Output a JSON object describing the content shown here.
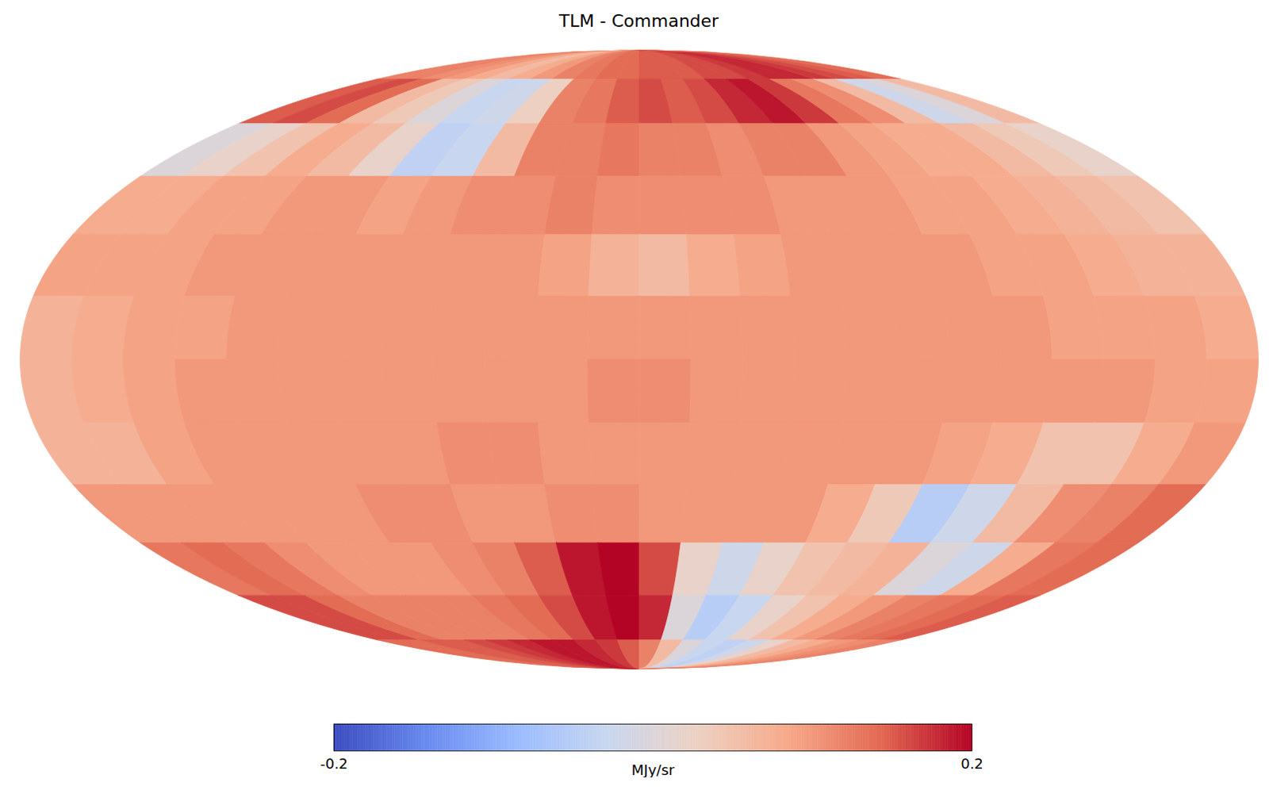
{
  "chart_data": {
    "type": "heatmap",
    "title": "TLM - Commander",
    "x": [
      172.5,
      157.5,
      142.5,
      127.5,
      112.5,
      97.5,
      82.5,
      67.5,
      52.5,
      37.5,
      22.5,
      7.5,
      -7.5,
      -22.5,
      -37.5,
      -52.5,
      -67.5,
      -82.5,
      -97.5,
      -112.5,
      -127.5,
      -142.5,
      -157.5,
      -172.5
    ],
    "y": [
      82.5,
      67.5,
      52.5,
      37.5,
      22.5,
      7.5,
      -7.5,
      -22.5,
      -37.5,
      -52.5,
      -67.5,
      -82.5
    ],
    "xlim": [
      180,
      -180
    ],
    "ylim": [
      90,
      -90
    ],
    "values": [
      [
        0.12,
        0.12,
        0.11,
        0.1,
        0.08,
        0.06,
        0.08,
        0.1,
        0.12,
        0.13,
        0.14,
        0.14,
        0.15,
        0.15,
        0.15,
        0.16,
        0.16,
        0.17,
        0.18,
        0.18,
        0.17,
        0.16,
        0.15,
        0.14
      ],
      [
        0.15,
        0.16,
        0.14,
        0.06,
        0.04,
        0,
        -0.03,
        -0.02,
        0.03,
        0.12,
        0.13,
        0.15,
        0.16,
        0.15,
        0.16,
        0.18,
        0.19,
        0.17,
        0.13,
        0.11,
        0.06,
        -0.02,
        0,
        0.06
      ],
      [
        0,
        0.02,
        0.05,
        0.08,
        0.06,
        0.02,
        -0.04,
        -0.03,
        0.06,
        0.12,
        0.12,
        0.13,
        0.12,
        0.12,
        0.11,
        0.12,
        0.12,
        0.1,
        0.09,
        0.08,
        0.08,
        0.06,
        0.04,
        0.02
      ],
      [
        0.08,
        0.08,
        0.09,
        0.09,
        0.1,
        0.1,
        0.09,
        0.1,
        0.11,
        0.11,
        0.12,
        0.11,
        0.11,
        0.11,
        0.11,
        0.1,
        0.1,
        0.1,
        0.09,
        0.09,
        0.08,
        0.07,
        0.06,
        0.05
      ],
      [
        0.09,
        0.09,
        0.09,
        0.1,
        0.1,
        0.1,
        0.1,
        0.1,
        0.1,
        0.1,
        0.09,
        0.07,
        0.06,
        0.08,
        0.09,
        0.1,
        0.1,
        0.1,
        0.1,
        0.09,
        0.09,
        0.08,
        0.07,
        0.07
      ],
      [
        0.07,
        0.08,
        0.09,
        0.09,
        0.1,
        0.1,
        0.1,
        0.1,
        0.1,
        0.1,
        0.1,
        0.1,
        0.1,
        0.1,
        0.1,
        0.1,
        0.1,
        0.1,
        0.1,
        0.1,
        0.09,
        0.09,
        0.09,
        0.08
      ],
      [
        0.07,
        0.08,
        0.09,
        0.1,
        0.1,
        0.1,
        0.1,
        0.1,
        0.1,
        0.1,
        0.1,
        0.11,
        0.11,
        0.1,
        0.1,
        0.1,
        0.1,
        0.1,
        0.1,
        0.1,
        0.1,
        0.1,
        0.09,
        0.09
      ],
      [
        0.07,
        0.07,
        0.09,
        0.1,
        0.1,
        0.1,
        0.1,
        0.1,
        0.11,
        0.11,
        0.1,
        0.1,
        0.1,
        0.1,
        0.1,
        0.1,
        0.1,
        0.1,
        0.09,
        0.08,
        0.05,
        0.05,
        0.08,
        0.1
      ],
      [
        0.1,
        0.1,
        0.1,
        0.1,
        0.1,
        0.1,
        0.11,
        0.11,
        0.1,
        0.1,
        0.11,
        0.11,
        0.1,
        0.1,
        0.1,
        0.1,
        0.08,
        0.04,
        -0.05,
        -0.02,
        0.06,
        0.11,
        0.12,
        0.14
      ],
      [
        0.13,
        0.14,
        0.13,
        0.11,
        0.1,
        0.1,
        0.1,
        0.11,
        0.12,
        0.15,
        0.19,
        0.2,
        0.16,
        0.02,
        -0.02,
        0.02,
        0.05,
        0.06,
        0.07,
        0,
        -0.02,
        0.08,
        0.13,
        0.14
      ],
      [
        0.16,
        0.16,
        0.14,
        0.12,
        0.12,
        0.12,
        0.12,
        0.13,
        0.14,
        0.16,
        0.19,
        0.2,
        0.18,
        0,
        -0.05,
        -0.03,
        0.02,
        0.05,
        0.08,
        0.1,
        0.12,
        0.13,
        0.14,
        0.15
      ],
      [
        0.14,
        0.14,
        0.15,
        0.15,
        0.16,
        0.17,
        0.18,
        0.19,
        0.19,
        0.18,
        0.17,
        0.15,
        0.12,
        0.06,
        0,
        -0.03,
        -0.04,
        -0.02,
        0.02,
        0.06,
        0.08,
        0.1,
        0.11,
        0.12
      ]
    ],
    "colorbar": {
      "range": [
        -0.2,
        0.2
      ],
      "ticks": [
        -0.2,
        0.2
      ],
      "label": "MJy/sr",
      "colors": [
        "#3b4cc0",
        "#6889ee",
        "#9abbff",
        "#c9d7f0",
        "#edd1c2",
        "#f7a889",
        "#e26952",
        "#b40426"
      ]
    }
  }
}
